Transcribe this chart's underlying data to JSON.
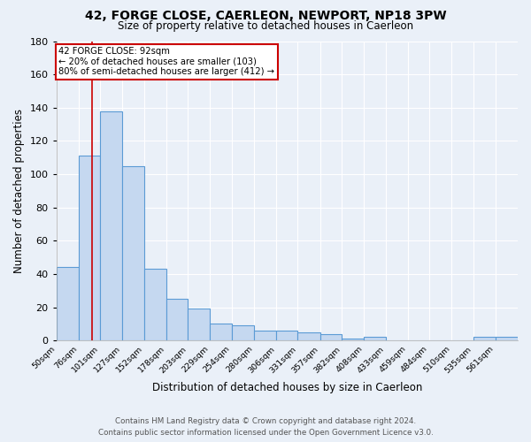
{
  "title": "42, FORGE CLOSE, CAERLEON, NEWPORT, NP18 3PW",
  "subtitle": "Size of property relative to detached houses in Caerleon",
  "xlabel": "Distribution of detached houses by size in Caerleon",
  "ylabel": "Number of detached properties",
  "footer_line1": "Contains HM Land Registry data © Crown copyright and database right 2024.",
  "footer_line2": "Contains public sector information licensed under the Open Government Licence v3.0.",
  "bar_labels": [
    "50sqm",
    "76sqm",
    "101sqm",
    "127sqm",
    "152sqm",
    "178sqm",
    "203sqm",
    "229sqm",
    "254sqm",
    "280sqm",
    "306sqm",
    "331sqm",
    "357sqm",
    "382sqm",
    "408sqm",
    "433sqm",
    "459sqm",
    "484sqm",
    "510sqm",
    "535sqm",
    "561sqm"
  ],
  "bar_values": [
    44,
    111,
    138,
    105,
    43,
    25,
    19,
    10,
    9,
    6,
    6,
    5,
    4,
    1,
    2,
    0,
    0,
    0,
    0,
    2,
    2
  ],
  "bar_color": "#c5d8f0",
  "bar_edge_color": "#5b9bd5",
  "bg_color": "#eaf0f8",
  "grid_color": "#ffffff",
  "annotation_line1": "42 FORGE CLOSE: 92sqm",
  "annotation_line2": "← 20% of detached houses are smaller (103)",
  "annotation_line3": "80% of semi-detached houses are larger (412) →",
  "annotation_box_color": "#ffffff",
  "annotation_box_edge": "#cc0000",
  "vline_x": 92,
  "vline_color": "#cc0000",
  "ylim": [
    0,
    180
  ],
  "yticks": [
    0,
    20,
    40,
    60,
    80,
    100,
    120,
    140,
    160,
    180
  ],
  "bin_edges": [
    50,
    76,
    101,
    127,
    152,
    178,
    203,
    229,
    254,
    280,
    306,
    331,
    357,
    382,
    408,
    433,
    459,
    484,
    510,
    535,
    561,
    587
  ]
}
